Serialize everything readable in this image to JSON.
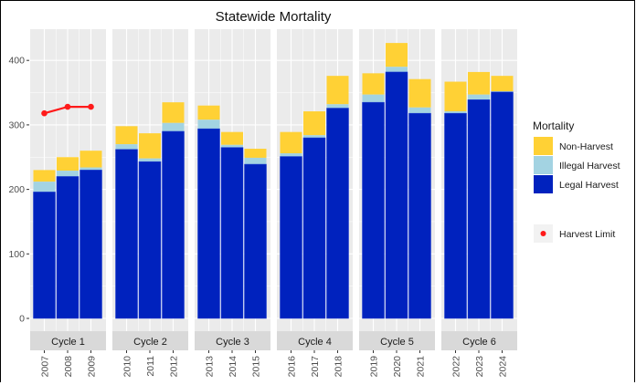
{
  "chart_data": {
    "type": "bar",
    "stacked": true,
    "title": "Statewide Mortality",
    "xlabel": "",
    "ylabel": "",
    "ylim": [
      0,
      445
    ],
    "yticks": [
      0,
      100,
      200,
      300,
      400
    ],
    "grid": true,
    "facets": [
      {
        "label": "Cycle 1",
        "years": [
          "2007",
          "2008",
          "2009"
        ]
      },
      {
        "label": "Cycle 2",
        "years": [
          "2010",
          "2011",
          "2012"
        ]
      },
      {
        "label": "Cycle 3",
        "years": [
          "2013",
          "2014",
          "2015"
        ]
      },
      {
        "label": "Cycle 4",
        "years": [
          "2016",
          "2017",
          "2018"
        ]
      },
      {
        "label": "Cycle 5",
        "years": [
          "2019",
          "2020",
          "2021"
        ]
      },
      {
        "label": "Cycle 6",
        "years": [
          "2022",
          "2023",
          "2024"
        ]
      }
    ],
    "categories": [
      "2007",
      "2008",
      "2009",
      "2010",
      "2011",
      "2012",
      "2013",
      "2014",
      "2015",
      "2016",
      "2017",
      "2018",
      "2019",
      "2020",
      "2021",
      "2022",
      "2023",
      "2024"
    ],
    "series": [
      {
        "name": "Legal Harvest",
        "color": "#0022BE",
        "values": [
          196,
          220,
          230,
          262,
          243,
          290,
          294,
          265,
          239,
          251,
          280,
          326,
          335,
          382,
          318,
          318,
          339,
          351
        ]
      },
      {
        "name": "Illegal Harvest",
        "color": "#A3D3E2",
        "values": [
          16,
          9,
          4,
          8,
          5,
          13,
          14,
          4,
          10,
          5,
          4,
          6,
          12,
          8,
          9,
          3,
          8,
          1
        ]
      },
      {
        "name": "Non-Harvest",
        "color": "#FFD135",
        "values": [
          18,
          21,
          26,
          28,
          39,
          32,
          22,
          20,
          14,
          33,
          37,
          44,
          33,
          37,
          44,
          46,
          35,
          24
        ]
      }
    ],
    "harvest_limit": {
      "name": "Harvest Limit",
      "color": "#FF1A1A",
      "years": [
        "2007",
        "2008",
        "2009"
      ],
      "values": [
        318,
        328,
        328
      ]
    },
    "legend": {
      "title": "Mortality",
      "placement": "right",
      "entries": [
        "Non-Harvest",
        "Illegal Harvest",
        "Legal Harvest"
      ],
      "line_entry": "Harvest Limit"
    }
  },
  "colors": {
    "panel_bg": "#EBEBEB",
    "grid_major": "#FFFFFF",
    "strip_bg": "#D9D9D9"
  }
}
